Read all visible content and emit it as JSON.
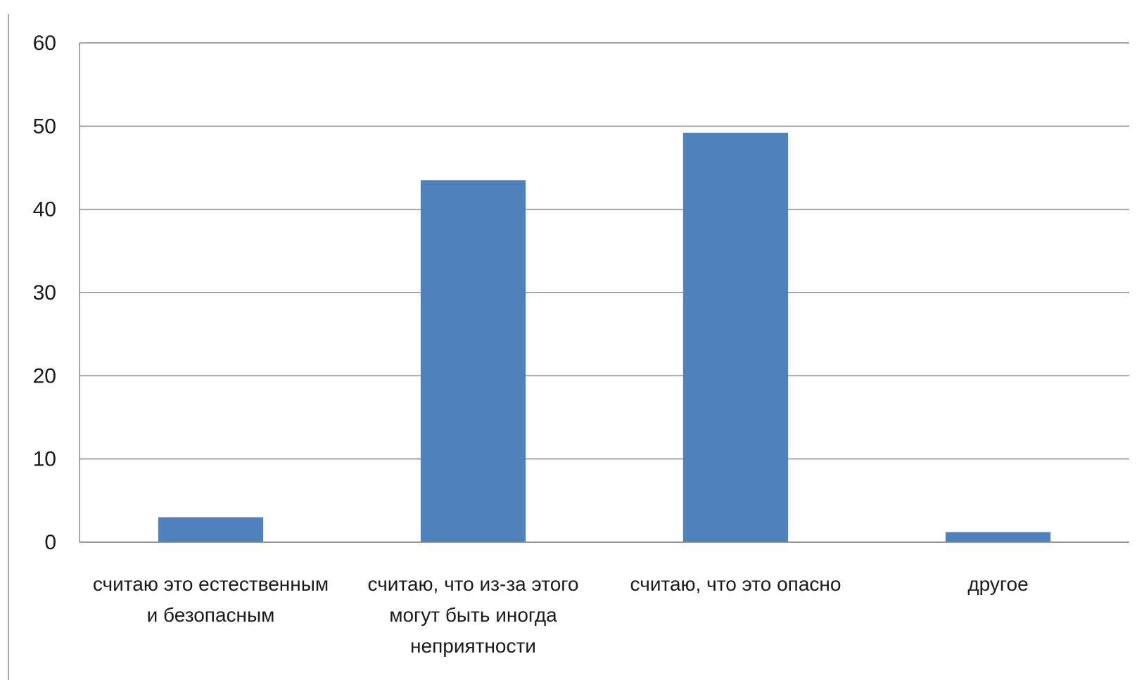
{
  "chart_data": {
    "type": "bar",
    "title": "",
    "xlabel": "",
    "ylabel": "",
    "categories": [
      [
        "считаю это естественным",
        "и безопасным"
      ],
      [
        "считаю, что из-за этого",
        "могут быть иногда",
        "неприятности"
      ],
      [
        "считаю, что это опасно"
      ],
      [
        "другое"
      ]
    ],
    "values": [
      3,
      43.5,
      49.2,
      1.2
    ],
    "ylim": [
      0,
      60
    ],
    "yticks": [
      0,
      10,
      20,
      30,
      40,
      50,
      60
    ],
    "grid": true,
    "legend": "none",
    "bar_color": "#4F81BD",
    "grid_color": "#8c8c8c"
  }
}
